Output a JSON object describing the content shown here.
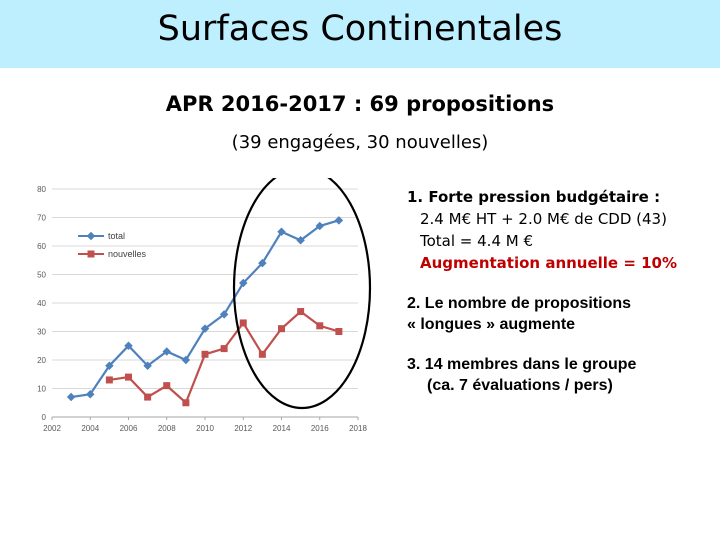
{
  "slide": {
    "title": "Surfaces Continentales",
    "subtitle": "APR 2016-2017 : 69 propositions",
    "subsubtitle": "(39 engagées, 30 nouvelles)"
  },
  "notes": {
    "item1_heading": "1. Forte pression budgétaire :",
    "item1_line1": "2.4 M€ HT + 2.0 M€ de CDD (43)",
    "item1_line2": "Total = 4.4 M €",
    "item1_line3": "Augmentation annuelle = 10%",
    "item2_line1": "2. Le nombre de propositions",
    "item2_line2": "« longues » augmente",
    "item3_line1": "3. 14 membres dans le groupe",
    "item3_line2": "(ca. 7 évaluations / pers)"
  },
  "colors": {
    "total": "#4f81bd",
    "nouvelles": "#c0504d",
    "title_band": "#bdefff",
    "highlight": "#c00000",
    "ellipse": "#000000"
  },
  "chart_data": {
    "type": "line",
    "xlim": [
      2002,
      2018
    ],
    "ylim": [
      0,
      80
    ],
    "xticks": [
      "2002",
      "2004",
      "2006",
      "2008",
      "2010",
      "2012",
      "2014",
      "2016",
      "2018"
    ],
    "yticks": [
      "0",
      "10",
      "20",
      "30",
      "40",
      "50",
      "60",
      "70",
      "80"
    ],
    "grid": true,
    "legend_position": "top-left",
    "annotation": "ellipse around 2011–2017",
    "series": [
      {
        "name": "total",
        "x": [
          2003,
          2004,
          2005,
          2006,
          2007,
          2008,
          2009,
          2010,
          2011,
          2012,
          2013,
          2014,
          2015,
          2016,
          2017
        ],
        "y": [
          7,
          8,
          18,
          25,
          18,
          23,
          20,
          31,
          36,
          47,
          54,
          65,
          62,
          67,
          69
        ]
      },
      {
        "name": "nouvelles",
        "x": [
          2005,
          2006,
          2007,
          2008,
          2009,
          2010,
          2011,
          2012,
          2013,
          2014,
          2015,
          2016,
          2017
        ],
        "y": [
          13,
          14,
          7,
          11,
          5,
          22,
          24,
          33,
          22,
          31,
          37,
          32,
          30
        ]
      }
    ]
  }
}
